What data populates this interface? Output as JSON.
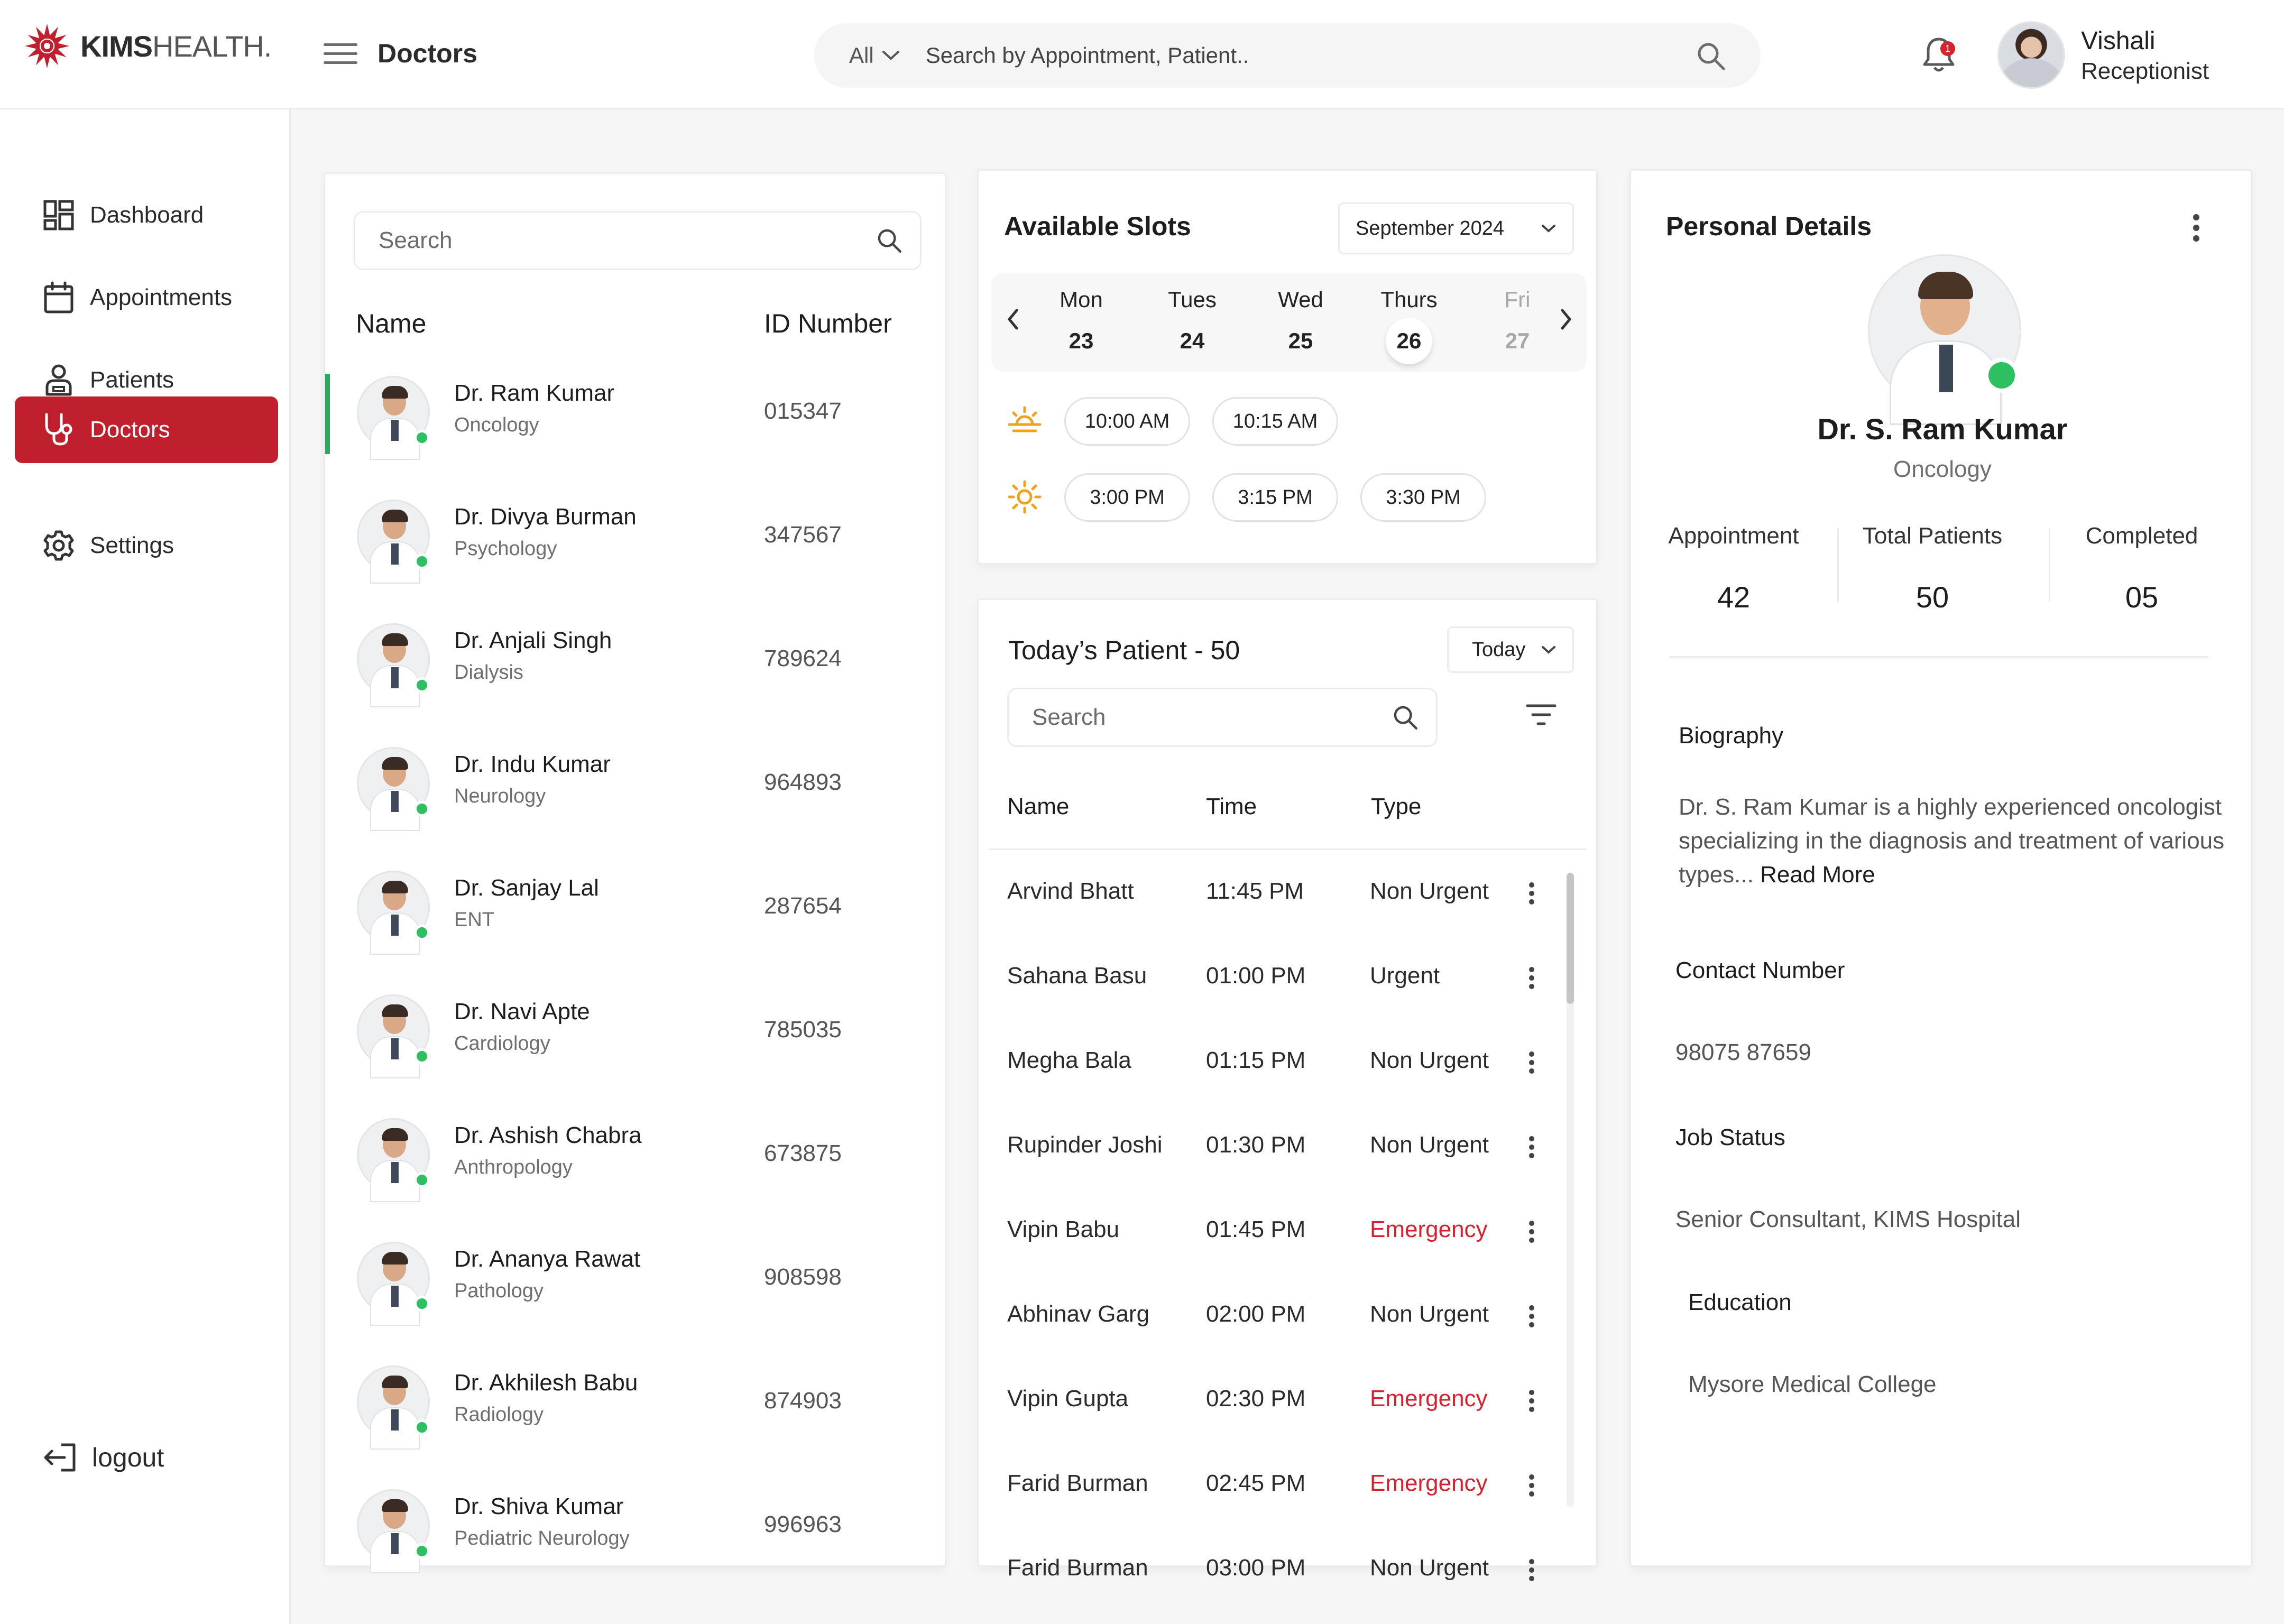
{
  "brand": {
    "name_bold": "KIMS",
    "name_regular": "HEALTH",
    "trademark": ".",
    "accent": "#c01f2e"
  },
  "header": {
    "page_title": "Doctors",
    "search": {
      "filter": "All",
      "placeholder": "Search by Appointment, Patient.."
    },
    "notifications": {
      "count": "1"
    },
    "user": {
      "name": "Vishali",
      "role": "Receptionist"
    }
  },
  "sidebar": {
    "items": [
      {
        "label": "Dashboard",
        "icon": "dashboard-icon"
      },
      {
        "label": "Appointments",
        "icon": "calendar-icon"
      },
      {
        "label": "Patients",
        "icon": "patient-icon"
      },
      {
        "label": "Doctors",
        "icon": "stethoscope-icon",
        "active": true
      },
      {
        "label": "Settings",
        "icon": "gear-icon"
      }
    ],
    "logout": "logout"
  },
  "doctors": {
    "search_placeholder": "Search",
    "columns": {
      "name": "Name",
      "id": "ID Number"
    },
    "list": [
      {
        "name": "Dr. Ram Kumar",
        "specialty": "Oncology",
        "id": "015347",
        "selected": true
      },
      {
        "name": "Dr. Divya Burman",
        "specialty": "Psychology",
        "id": "347567"
      },
      {
        "name": "Dr. Anjali Singh",
        "specialty": "Dialysis",
        "id": "789624"
      },
      {
        "name": "Dr. Indu Kumar",
        "specialty": "Neurology",
        "id": "964893"
      },
      {
        "name": "Dr. Sanjay Lal",
        "specialty": "ENT",
        "id": "287654"
      },
      {
        "name": "Dr. Navi Apte",
        "specialty": "Cardiology",
        "id": "785035"
      },
      {
        "name": "Dr. Ashish Chabra",
        "specialty": "Anthropology",
        "id": "673875"
      },
      {
        "name": "Dr. Ananya Rawat",
        "specialty": "Pathology",
        "id": "908598"
      },
      {
        "name": "Dr. Akhilesh Babu",
        "specialty": "Radiology",
        "id": "874903"
      },
      {
        "name": "Dr. Shiva Kumar",
        "specialty": "Pediatric Neurology",
        "id": "996963"
      }
    ]
  },
  "slots": {
    "title": "Available Slots",
    "month": "September 2024",
    "days": [
      {
        "name": "Mon",
        "date": "23"
      },
      {
        "name": "Tues",
        "date": "24"
      },
      {
        "name": "Wed",
        "date": "25"
      },
      {
        "name": "Thurs",
        "date": "26",
        "selected": true
      },
      {
        "name": "Fri",
        "date": "27",
        "dimmed": true
      }
    ],
    "morning": [
      "10:00 AM",
      "10:15 AM"
    ],
    "afternoon": [
      "3:00 PM",
      "3:15 PM",
      "3:30 PM"
    ]
  },
  "today": {
    "title": "Today’s Patient - 50",
    "filter": "Today",
    "search_placeholder": "Search",
    "columns": {
      "name": "Name",
      "time": "Time",
      "type": "Type"
    },
    "patients": [
      {
        "name": "Arvind Bhatt",
        "time": "11:45 PM",
        "type": "Non Urgent"
      },
      {
        "name": "Sahana Basu",
        "time": "01:00 PM",
        "type": "Urgent"
      },
      {
        "name": "Megha Bala",
        "time": "01:15 PM",
        "type": "Non Urgent"
      },
      {
        "name": "Rupinder Joshi",
        "time": "01:30 PM",
        "type": "Non Urgent"
      },
      {
        "name": "Vipin Babu",
        "time": "01:45 PM",
        "type": "Emergency"
      },
      {
        "name": "Abhinav Garg",
        "time": "02:00 PM",
        "type": "Non Urgent"
      },
      {
        "name": "Vipin Gupta",
        "time": "02:30 PM",
        "type": "Emergency"
      },
      {
        "name": "Farid Burman",
        "time": "02:45 PM",
        "type": "Emergency"
      },
      {
        "name": "Farid Burman",
        "time": "03:00 PM",
        "type": "Non Urgent"
      }
    ],
    "emergency_color": "#d3212f"
  },
  "personal": {
    "title": "Personal Details",
    "name": "Dr. S. Ram Kumar",
    "specialty": "Oncology",
    "stats": [
      {
        "label": "Appointment",
        "value": "42"
      },
      {
        "label": "Total Patients",
        "value": "50"
      },
      {
        "label": "Completed",
        "value": "05"
      }
    ],
    "biography_label": "Biography",
    "biography_lines": [
      "Dr. S. Ram Kumar is a highly experienced oncologist",
      "specializing in the diagnosis and treatment of various",
      "types..."
    ],
    "read_more": "Read More",
    "contact_label": "Contact Number",
    "contact": "98075 87659",
    "job_label": "Job Status",
    "job": "Senior Consultant, KIMS Hospital",
    "education_label": "Education",
    "education": "Mysore Medical College"
  }
}
